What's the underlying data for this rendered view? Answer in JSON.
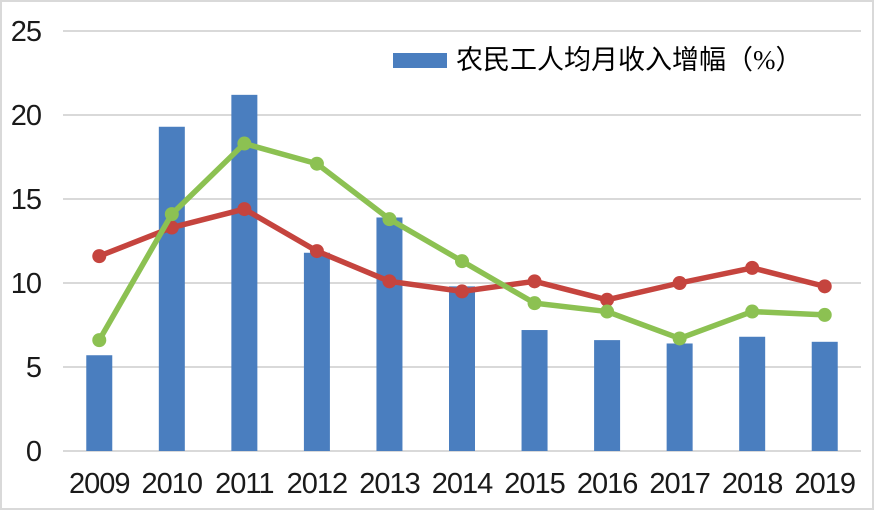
{
  "chart": {
    "legend": {
      "bar_label": "农民工人均月收入增幅（%）"
    },
    "colors": {
      "bar": "#4a7ebf",
      "red_line": "#c5443e",
      "green_line": "#8cc152",
      "grid": "#d9d9d9",
      "axis_text": "#1a1a1a",
      "background": "#ffffff",
      "border": "#d9d9d9"
    }
  },
  "chart_data": {
    "type": "bar",
    "title": "",
    "xlabel": "",
    "ylabel": "",
    "categories": [
      "2009",
      "2010",
      "2011",
      "2012",
      "2013",
      "2014",
      "2015",
      "2016",
      "2017",
      "2018",
      "2019"
    ],
    "series": [
      {
        "name": "农民工人均月收入增幅（%）",
        "kind": "bar",
        "color": "#4a7ebf",
        "in_legend": true,
        "values": [
          5.7,
          19.3,
          21.2,
          11.8,
          13.9,
          9.8,
          7.2,
          6.6,
          6.4,
          6.8,
          6.5
        ]
      },
      {
        "name": "red-line",
        "kind": "line",
        "color": "#c5443e",
        "in_legend": false,
        "values": [
          11.6,
          13.3,
          14.4,
          11.9,
          10.1,
          9.5,
          10.1,
          9.0,
          10.0,
          10.9,
          9.8
        ]
      },
      {
        "name": "green-line",
        "kind": "line",
        "color": "#8cc152",
        "in_legend": false,
        "values": [
          6.6,
          14.1,
          18.3,
          17.1,
          13.8,
          11.3,
          8.8,
          8.3,
          6.7,
          8.3,
          8.1
        ]
      }
    ],
    "ylim": [
      0,
      25
    ],
    "yticks": [
      0,
      5,
      10,
      15,
      20,
      25
    ],
    "grid": true,
    "legend_position": "top-center"
  }
}
